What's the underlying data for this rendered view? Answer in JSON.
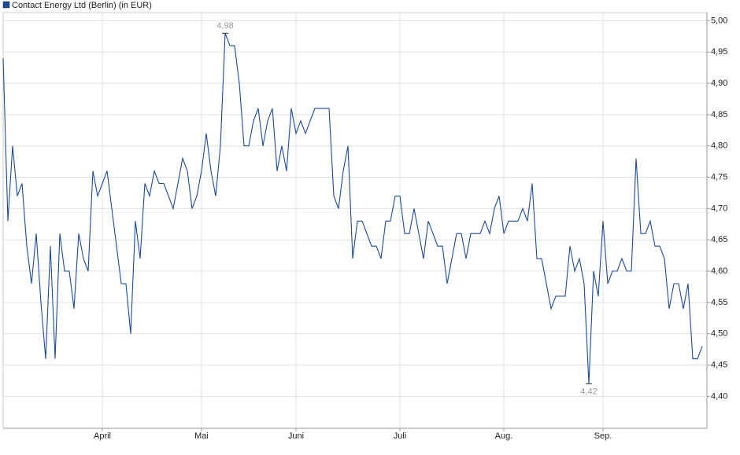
{
  "chart_data": {
    "type": "line",
    "series": [
      {
        "name": "Contact Energy Ltd (Berlin) (in EUR)",
        "color": "#1a4a9c",
        "values": [
          4.94,
          4.68,
          4.8,
          4.72,
          4.74,
          4.64,
          4.58,
          4.66,
          4.55,
          4.46,
          4.64,
          4.46,
          4.66,
          4.6,
          4.6,
          4.54,
          4.66,
          4.62,
          4.6,
          4.76,
          4.72,
          4.74,
          4.76,
          4.7,
          4.64,
          4.58,
          4.58,
          4.5,
          4.68,
          4.62,
          4.74,
          4.72,
          4.76,
          4.74,
          4.74,
          4.72,
          4.7,
          4.74,
          4.78,
          4.76,
          4.7,
          4.72,
          4.76,
          4.82,
          4.76,
          4.72,
          4.8,
          4.98,
          4.96,
          4.96,
          4.9,
          4.8,
          4.8,
          4.84,
          4.86,
          4.8,
          4.84,
          4.86,
          4.76,
          4.8,
          4.76,
          4.86,
          4.82,
          4.84,
          4.82,
          4.84,
          4.86,
          4.86,
          4.86,
          4.86,
          4.72,
          4.7,
          4.76,
          4.8,
          4.62,
          4.68,
          4.68,
          4.66,
          4.64,
          4.64,
          4.62,
          4.68,
          4.68,
          4.72,
          4.72,
          4.66,
          4.66,
          4.7,
          4.66,
          4.62,
          4.68,
          4.66,
          4.64,
          4.64,
          4.58,
          4.62,
          4.66,
          4.66,
          4.62,
          4.66,
          4.66,
          4.66,
          4.68,
          4.66,
          4.7,
          4.72,
          4.66,
          4.68,
          4.68,
          4.68,
          4.7,
          4.68,
          4.74,
          4.62,
          4.62,
          4.58,
          4.54,
          4.56,
          4.56,
          4.56,
          4.64,
          4.6,
          4.62,
          4.58,
          4.42,
          4.6,
          4.56,
          4.68,
          4.58,
          4.6,
          4.6,
          4.62,
          4.6,
          4.6,
          4.78,
          4.66,
          4.66,
          4.68,
          4.64,
          4.64,
          4.62,
          4.54,
          4.58,
          4.58,
          4.54,
          4.58,
          4.46,
          4.46,
          4.48
        ],
        "value_labels": [
          null,
          null,
          null,
          null,
          null,
          null,
          null,
          null,
          null,
          null,
          null,
          null,
          null,
          null,
          null,
          null,
          null,
          null,
          null,
          null,
          null,
          null,
          null,
          null,
          null,
          null,
          null,
          null,
          null,
          null,
          null,
          null,
          null,
          null,
          null,
          null,
          null,
          null,
          null,
          null,
          null,
          null,
          null,
          null,
          null,
          null,
          null,
          "4,98",
          null,
          null,
          null,
          null,
          null,
          null,
          null,
          null,
          null,
          null,
          null,
          null,
          null,
          null,
          null,
          null,
          null,
          null,
          null,
          null,
          null,
          null,
          null,
          null,
          null,
          null,
          null,
          null,
          null,
          null,
          null,
          null,
          null,
          null,
          null,
          null,
          null,
          null,
          null,
          null,
          null,
          null,
          null,
          null,
          null,
          null,
          null,
          null,
          null,
          null,
          null,
          null,
          null,
          null,
          null,
          null,
          null,
          null,
          null,
          null,
          null,
          null,
          null,
          null,
          null,
          null,
          null,
          null,
          null,
          null,
          null,
          null,
          null,
          null,
          null,
          null,
          "4,42",
          null,
          null,
          null,
          null,
          null,
          null,
          null,
          null,
          null,
          null,
          null,
          null,
          null,
          null,
          null,
          null,
          null,
          null,
          null,
          null,
          null,
          null,
          null,
          null
        ]
      }
    ],
    "categories": [
      null,
      null,
      null,
      null,
      null,
      null,
      null,
      null,
      null,
      null,
      null,
      null,
      null,
      null,
      null,
      null,
      null,
      null,
      null,
      null,
      null,
      "April",
      null,
      null,
      null,
      null,
      null,
      null,
      null,
      null,
      null,
      null,
      null,
      null,
      null,
      null,
      null,
      null,
      null,
      null,
      null,
      null,
      "Mai",
      null,
      null,
      null,
      null,
      null,
      null,
      null,
      null,
      null,
      null,
      null,
      null,
      null,
      null,
      null,
      null,
      null,
      null,
      null,
      "Juni",
      null,
      null,
      null,
      null,
      null,
      null,
      null,
      null,
      null,
      null,
      null,
      null,
      null,
      null,
      null,
      null,
      null,
      null,
      null,
      null,
      null,
      "Juli",
      null,
      null,
      null,
      null,
      null,
      null,
      null,
      null,
      null,
      null,
      null,
      null,
      null,
      null,
      null,
      null,
      null,
      null,
      null,
      null,
      null,
      "Aug.",
      null,
      null,
      null,
      null,
      null,
      null,
      null,
      null,
      null,
      null,
      null,
      null,
      null,
      null,
      null,
      null,
      null,
      null,
      null,
      null,
      "Sep.",
      null,
      null,
      null,
      null,
      null,
      null,
      null,
      null,
      null,
      null,
      null,
      null,
      null,
      null,
      null,
      null,
      null,
      null,
      null,
      null,
      null
    ],
    "ylim": [
      4.349,
      5.013
    ],
    "yticks": [
      {
        "value": 4.4,
        "label": "4,40"
      },
      {
        "value": 4.45,
        "label": "4,45"
      },
      {
        "value": 4.5,
        "label": "4,50"
      },
      {
        "value": 4.55,
        "label": "4,55"
      },
      {
        "value": 4.6,
        "label": "4,60"
      },
      {
        "value": 4.65,
        "label": "4,65"
      },
      {
        "value": 4.7,
        "label": "4,70"
      },
      {
        "value": 4.75,
        "label": "4,75"
      },
      {
        "value": 4.8,
        "label": "4,80"
      },
      {
        "value": 4.85,
        "label": "4,85"
      },
      {
        "value": 4.9,
        "label": "4,90"
      },
      {
        "value": 4.95,
        "label": "4,95"
      },
      {
        "value": 5.0,
        "label": "5,00"
      }
    ],
    "grid": true,
    "legend": "top-left"
  }
}
